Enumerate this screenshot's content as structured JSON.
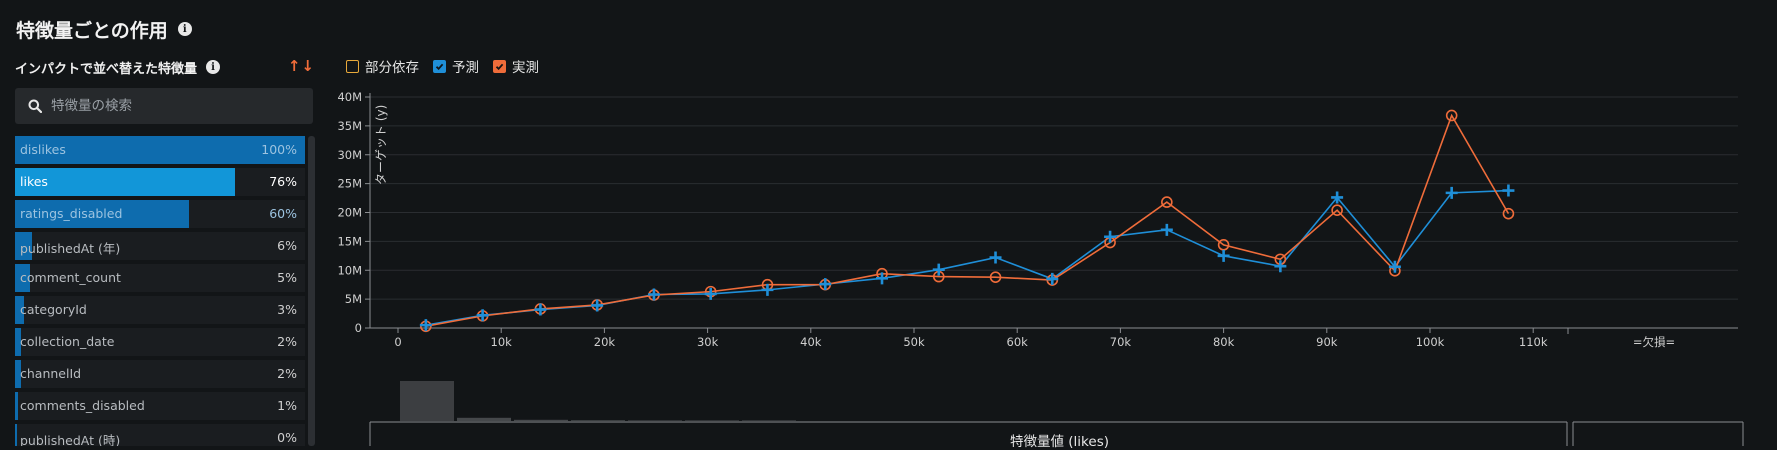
{
  "header": {
    "title": "特徴量ごとの作用",
    "info_icon": "info-icon"
  },
  "sidebar": {
    "title": "インパクトで並べ替えた特徴量",
    "sort_arrows": "↑↓",
    "search_placeholder": "特徴量の検索",
    "features": [
      {
        "name": "dislikes",
        "pct": "100%",
        "value": 100,
        "state": "top"
      },
      {
        "name": "likes",
        "pct": "76%",
        "value": 76,
        "state": "selected"
      },
      {
        "name": "ratings_disabled",
        "pct": "60%",
        "value": 60,
        "state": "top"
      },
      {
        "name": "publishedAt (年)",
        "pct": "6%",
        "value": 6,
        "state": ""
      },
      {
        "name": "comment_count",
        "pct": "5%",
        "value": 5,
        "state": ""
      },
      {
        "name": "categoryId",
        "pct": "3%",
        "value": 3,
        "state": ""
      },
      {
        "name": "collection_date",
        "pct": "2%",
        "value": 2,
        "state": ""
      },
      {
        "name": "channelId",
        "pct": "2%",
        "value": 2,
        "state": ""
      },
      {
        "name": "comments_disabled",
        "pct": "1%",
        "value": 1,
        "state": ""
      },
      {
        "name": "publishedAt (時)",
        "pct": "0%",
        "value": 0,
        "state": ""
      }
    ]
  },
  "legend": {
    "items": [
      {
        "label": "部分依存",
        "checked": false,
        "color": "#e8a93a"
      },
      {
        "label": "予測",
        "checked": true,
        "color": "#1f8fd8"
      },
      {
        "label": "実測",
        "checked": true,
        "color": "#ef6c3a"
      }
    ]
  },
  "chart_data": {
    "type": "line",
    "ylabel": "ターゲット (y)",
    "xlabel": "特徴量値 (likes)",
    "ylim": [
      0,
      40000000
    ],
    "xlim": [
      0,
      110000
    ],
    "y_ticks": [
      "0",
      "5M",
      "10M",
      "15M",
      "20M",
      "25M",
      "30M",
      "35M",
      "40M"
    ],
    "x_ticks": [
      "0",
      "10k",
      "20k",
      "30k",
      "40k",
      "50k",
      "60k",
      "70k",
      "80k",
      "90k",
      "100k",
      "110k"
    ],
    "missing_label": "=欠損=",
    "grid": true,
    "x": [
      2700,
      8200,
      13800,
      19300,
      24800,
      30300,
      35800,
      41400,
      46900,
      52400,
      57900,
      63400,
      69000,
      74500,
      80000,
      85500,
      91000,
      96600,
      102100,
      107600
    ],
    "series": [
      {
        "name": "予測",
        "color": "#1f8fd8",
        "marker": "plus",
        "values": [
          500000,
          2200000,
          3200000,
          3900000,
          5800000,
          5900000,
          6600000,
          7600000,
          8600000,
          10100000,
          12200000,
          8500000,
          15800000,
          17000000,
          12500000,
          10700000,
          22600000,
          10600000,
          23400000,
          23800000
        ]
      },
      {
        "name": "実測",
        "color": "#ef6c3a",
        "marker": "circle",
        "values": [
          300000,
          2100000,
          3300000,
          4000000,
          5700000,
          6300000,
          7500000,
          7500000,
          9400000,
          8900000,
          8800000,
          8300000,
          14800000,
          21800000,
          14400000,
          11900000,
          20400000,
          9900000,
          36800000,
          19800000
        ]
      }
    ],
    "histogram": [
      1.0,
      0.08,
      0.03,
      0.02,
      0.01,
      0.005,
      0.004
    ]
  }
}
